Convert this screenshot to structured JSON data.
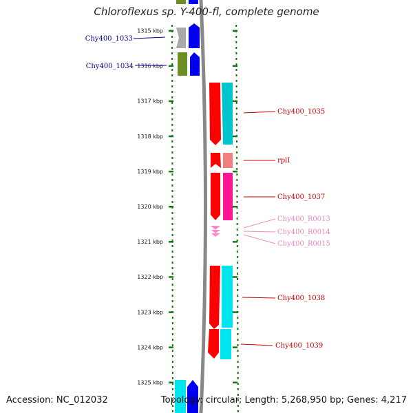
{
  "title": "Chloroflexus sp. Y-400-fl, complete genome",
  "footer": {
    "accession": "Accession: NC_012032",
    "topology": "Topology: circular; Length: 5,268,950 bp; Genes: 4,217"
  },
  "scale": {
    "ticks": [
      "1315 kbp",
      "1316 kbp",
      "1317 kbp",
      "1318 kbp",
      "1319 kbp",
      "1320 kbp",
      "1321 kbp",
      "1322 kbp",
      "1323 kbp",
      "1324 kbp",
      "1325 kbp"
    ]
  },
  "colors": {
    "left_label": "#00008b",
    "right_label": "#cc0000",
    "rna_label": "#ee88bb",
    "backbone": "#808080",
    "ticks": "#117711"
  },
  "genes_left": [
    {
      "label": "Chy400_1033"
    },
    {
      "label": "Chy400_1034"
    }
  ],
  "genes_right": [
    {
      "label": "Chy400_1035"
    },
    {
      "label": "rplI"
    },
    {
      "label": "Chy400_1037"
    },
    {
      "label": "Chy400_R0013"
    },
    {
      "label": "Chy400_R0014"
    },
    {
      "label": "Chy400_R0015"
    },
    {
      "label": "Chy400_1038"
    },
    {
      "label": "Chy400_1039"
    }
  ]
}
